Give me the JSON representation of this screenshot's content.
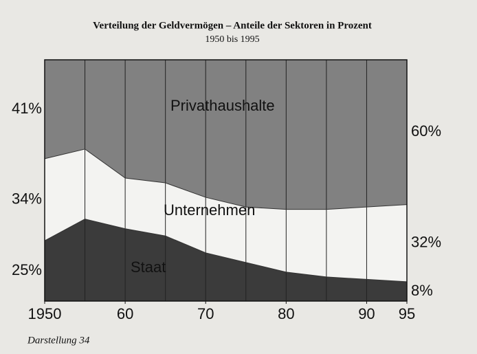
{
  "chart_data": {
    "type": "stacked_area",
    "title": "Verteilung der Geldvermögen – Anteile der Sektoren in Prozent",
    "subtitle": "1950 bis 1995",
    "x": [
      1950,
      1955,
      1960,
      1965,
      1970,
      1975,
      1980,
      1985,
      1990,
      1995
    ],
    "xlim": [
      1950,
      1995
    ],
    "xticks": [
      1950,
      {
        "value": 1960,
        "label": "60"
      },
      {
        "value": 1970,
        "label": "70"
      },
      {
        "value": 1980,
        "label": "80"
      },
      {
        "value": 1990,
        "label": "90"
      },
      {
        "value": 1995,
        "label": "95"
      }
    ],
    "ylim": [
      0,
      100
    ],
    "grid": true,
    "series": [
      {
        "name": "Staat",
        "color": "#3b3b3b",
        "values": [
          25,
          34,
          30,
          27,
          20,
          16,
          12,
          10,
          9,
          8
        ],
        "value_labels": [
          "25%",
          null,
          null,
          null,
          null,
          null,
          null,
          null,
          null,
          "8%"
        ]
      },
      {
        "name": "Unternehmen",
        "color": "#f3f3f1",
        "values": [
          34,
          29,
          21,
          22,
          23,
          23,
          26,
          28,
          30,
          32
        ],
        "value_labels": [
          "34%",
          null,
          null,
          null,
          null,
          null,
          null,
          null,
          null,
          "32%"
        ]
      },
      {
        "name": "Privathaushalte",
        "color": "#818181",
        "values": [
          41,
          37,
          49,
          51,
          57,
          61,
          62,
          62,
          61,
          60
        ],
        "value_labels": [
          "41%",
          null,
          null,
          null,
          null,
          null,
          null,
          null,
          null,
          "60%"
        ]
      }
    ],
    "caption": "Darstellung 34"
  }
}
